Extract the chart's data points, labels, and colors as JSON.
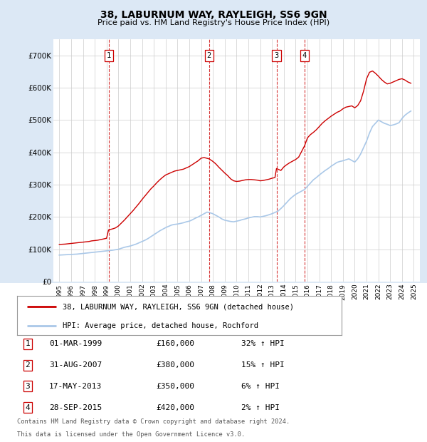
{
  "title": "38, LABURNUM WAY, RAYLEIGH, SS6 9GN",
  "subtitle": "Price paid vs. HM Land Registry's House Price Index (HPI)",
  "footer_line1": "Contains HM Land Registry data © Crown copyright and database right 2024.",
  "footer_line2": "This data is licensed under the Open Government Licence v3.0.",
  "legend_red": "38, LABURNUM WAY, RAYLEIGH, SS6 9GN (detached house)",
  "legend_blue": "HPI: Average price, detached house, Rochford",
  "transactions": [
    {
      "label": "1",
      "date": "01-MAR-1999",
      "price": "£160,000",
      "hpi": "32% ↑ HPI",
      "year": 1999.17
    },
    {
      "label": "2",
      "date": "31-AUG-2007",
      "price": "£380,000",
      "hpi": "15% ↑ HPI",
      "year": 2007.67
    },
    {
      "label": "3",
      "date": "17-MAY-2013",
      "price": "£350,000",
      "hpi": "6% ↑ HPI",
      "year": 2013.38
    },
    {
      "label": "4",
      "date": "28-SEP-2015",
      "price": "£420,000",
      "hpi": "2% ↑ HPI",
      "year": 2015.75
    }
  ],
  "ylim": [
    0,
    750000
  ],
  "yticks": [
    0,
    100000,
    200000,
    300000,
    400000,
    500000,
    600000,
    700000
  ],
  "ytick_labels": [
    "£0",
    "£100K",
    "£200K",
    "£300K",
    "£400K",
    "£500K",
    "£600K",
    "£700K"
  ],
  "xlim_start": 1994.5,
  "xlim_end": 2025.5,
  "background_color": "#dce8f5",
  "plot_bg_color": "#ffffff",
  "bottom_bg_color": "#ffffff",
  "grid_color": "#cccccc",
  "red_color": "#cc0000",
  "blue_color": "#aac8e8",
  "hpi_years": [
    1995,
    1995.25,
    1995.5,
    1995.75,
    1996,
    1996.25,
    1996.5,
    1996.75,
    1997,
    1997.25,
    1997.5,
    1997.75,
    1998,
    1998.25,
    1998.5,
    1998.75,
    1999,
    1999.25,
    1999.5,
    1999.75,
    2000,
    2000.25,
    2000.5,
    2000.75,
    2001,
    2001.25,
    2001.5,
    2001.75,
    2002,
    2002.25,
    2002.5,
    2002.75,
    2003,
    2003.25,
    2003.5,
    2003.75,
    2004,
    2004.25,
    2004.5,
    2004.75,
    2005,
    2005.25,
    2005.5,
    2005.75,
    2006,
    2006.25,
    2006.5,
    2006.75,
    2007,
    2007.25,
    2007.5,
    2007.75,
    2008,
    2008.25,
    2008.5,
    2008.75,
    2009,
    2009.25,
    2009.5,
    2009.75,
    2010,
    2010.25,
    2010.5,
    2010.75,
    2011,
    2011.25,
    2011.5,
    2011.75,
    2012,
    2012.25,
    2012.5,
    2012.75,
    2013,
    2013.25,
    2013.5,
    2013.75,
    2014,
    2014.25,
    2014.5,
    2014.75,
    2015,
    2015.25,
    2015.5,
    2015.75,
    2016,
    2016.25,
    2016.5,
    2016.75,
    2017,
    2017.25,
    2017.5,
    2017.75,
    2018,
    2018.25,
    2018.5,
    2018.75,
    2019,
    2019.25,
    2019.5,
    2019.75,
    2020,
    2020.25,
    2020.5,
    2020.75,
    2021,
    2021.25,
    2021.5,
    2021.75,
    2022,
    2022.25,
    2022.5,
    2022.75,
    2023,
    2023.25,
    2023.5,
    2023.75,
    2024,
    2024.25,
    2024.5,
    2024.75
  ],
  "hpi_values": [
    82000,
    82500,
    83000,
    83500,
    84000,
    84500,
    85000,
    86000,
    87000,
    88000,
    89000,
    90000,
    91000,
    92000,
    93000,
    94000,
    95000,
    96000,
    97000,
    98500,
    100000,
    103000,
    106000,
    108000,
    110000,
    113000,
    116000,
    120000,
    124000,
    128000,
    133000,
    139000,
    145000,
    151000,
    157000,
    162000,
    167000,
    171000,
    175000,
    177000,
    178000,
    180000,
    182000,
    185000,
    187000,
    191000,
    196000,
    200000,
    205000,
    210000,
    215000,
    213000,
    210000,
    205000,
    200000,
    194000,
    190000,
    188000,
    186000,
    185000,
    187000,
    189000,
    192000,
    194000,
    197000,
    199000,
    201000,
    201000,
    200000,
    202000,
    204000,
    207000,
    210000,
    214000,
    218000,
    226000,
    235000,
    245000,
    255000,
    263000,
    270000,
    275000,
    280000,
    285000,
    295000,
    305000,
    315000,
    322000,
    330000,
    337000,
    344000,
    350000,
    357000,
    363000,
    369000,
    372000,
    374000,
    377000,
    380000,
    375000,
    370000,
    380000,
    395000,
    415000,
    435000,
    460000,
    480000,
    490000,
    500000,
    495000,
    490000,
    487000,
    483000,
    485000,
    488000,
    492000,
    505000,
    515000,
    522000,
    528000
  ],
  "red_years": [
    1995,
    1995.25,
    1995.5,
    1995.75,
    1996,
    1996.25,
    1996.5,
    1996.75,
    1997,
    1997.25,
    1997.5,
    1997.75,
    1998,
    1998.25,
    1998.5,
    1998.75,
    1999,
    1999.17,
    1999.5,
    1999.75,
    2000,
    2000.25,
    2000.5,
    2000.75,
    2001,
    2001.25,
    2001.5,
    2001.75,
    2002,
    2002.25,
    2002.5,
    2002.75,
    2003,
    2003.25,
    2003.5,
    2003.75,
    2004,
    2004.25,
    2004.5,
    2004.75,
    2005,
    2005.25,
    2005.5,
    2005.75,
    2006,
    2006.25,
    2006.5,
    2006.75,
    2007,
    2007.25,
    2007.67,
    2007.75,
    2008,
    2008.25,
    2008.5,
    2008.75,
    2009,
    2009.25,
    2009.5,
    2009.75,
    2010,
    2010.25,
    2010.5,
    2010.75,
    2011,
    2011.25,
    2011.5,
    2011.75,
    2012,
    2012.25,
    2012.5,
    2012.75,
    2013,
    2013.25,
    2013.38,
    2013.5,
    2013.75,
    2014,
    2014.25,
    2014.5,
    2014.75,
    2015,
    2015.25,
    2015.75,
    2016,
    2016.25,
    2016.5,
    2016.75,
    2017,
    2017.25,
    2017.5,
    2017.75,
    2018,
    2018.25,
    2018.5,
    2018.75,
    2019,
    2019.25,
    2019.5,
    2019.75,
    2020,
    2020.25,
    2020.5,
    2020.75,
    2021,
    2021.25,
    2021.5,
    2021.75,
    2022,
    2022.25,
    2022.5,
    2022.75,
    2023,
    2023.25,
    2023.5,
    2023.75,
    2024,
    2024.25,
    2024.5,
    2024.75
  ],
  "red_values": [
    115000,
    115500,
    116000,
    117000,
    118000,
    119000,
    120000,
    121000,
    122000,
    123000,
    124000,
    126000,
    127000,
    128000,
    130000,
    132000,
    134000,
    160000,
    163000,
    166000,
    172000,
    181000,
    190000,
    200000,
    210000,
    220000,
    231000,
    242000,
    254000,
    265000,
    276000,
    287000,
    296000,
    306000,
    315000,
    323000,
    330000,
    334000,
    338000,
    342000,
    344000,
    346000,
    348000,
    352000,
    356000,
    362000,
    368000,
    374000,
    382000,
    384000,
    380000,
    378000,
    372000,
    364000,
    354000,
    345000,
    336000,
    328000,
    318000,
    312000,
    310000,
    311000,
    313000,
    315000,
    316000,
    316000,
    315000,
    314000,
    312000,
    313000,
    315000,
    317000,
    320000,
    322000,
    350000,
    348000,
    344000,
    355000,
    362000,
    368000,
    373000,
    378000,
    385000,
    420000,
    445000,
    455000,
    462000,
    470000,
    480000,
    490000,
    498000,
    505000,
    512000,
    518000,
    524000,
    528000,
    535000,
    540000,
    542000,
    544000,
    538000,
    545000,
    560000,
    590000,
    628000,
    648000,
    652000,
    645000,
    636000,
    626000,
    618000,
    612000,
    614000,
    618000,
    622000,
    626000,
    628000,
    624000,
    618000,
    614000
  ]
}
